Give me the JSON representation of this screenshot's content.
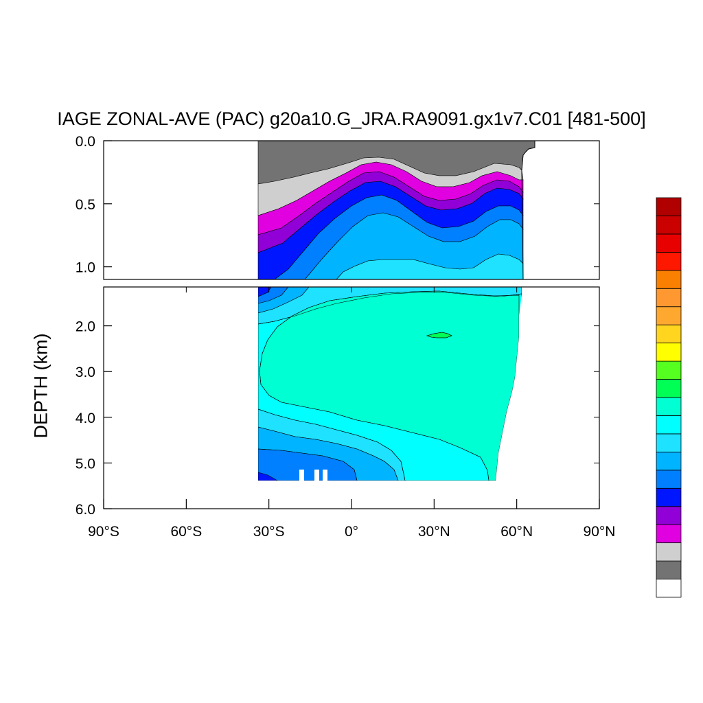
{
  "chart_data": {
    "type": "heatmap",
    "title": "IAGE ZONAL-AVE (PAC) g20a10.G_JRA.RA9091.gx1v7.C01 [481-500]",
    "ylabel": "DEPTH (km)",
    "x": {
      "range": [
        -90,
        90
      ],
      "ticks": [
        -90,
        -60,
        -30,
        0,
        30,
        60,
        90
      ],
      "tick_labels": [
        "90°S",
        "60°S",
        "30°S",
        "0°",
        "30°N",
        "60°N",
        "90°N"
      ]
    },
    "upper_panel": {
      "depth_range": [
        0.0,
        1.1
      ],
      "ticks": [
        0.0,
        0.5,
        1.0
      ],
      "tick_labels": [
        "0.0",
        "0.5",
        "1.0"
      ]
    },
    "lower_panel": {
      "depth_range": [
        1.15,
        6.0
      ],
      "ticks": [
        2.0,
        3.0,
        4.0,
        5.0,
        6.0
      ],
      "tick_labels": [
        "2.0",
        "3.0",
        "4.0",
        "5.0",
        "6.0"
      ]
    },
    "colorbar": {
      "orientation": "vertical",
      "placement": "right",
      "colors": [
        "#ffffff",
        "#737373",
        "#cfcfcf",
        "#e000e0",
        "#9100d6",
        "#0016ff",
        "#0080ff",
        "#00b4ff",
        "#1ee2ff",
        "#00ffff",
        "#00ffd2",
        "#00ff55",
        "#55ff1f",
        "#ffff00",
        "#ffd520",
        "#ffa830",
        "#ff9830",
        "#f98000",
        "#ff1800",
        "#e80000",
        "#cb0000",
        "#b00000"
      ]
    },
    "regions": {
      "land": "#ffffff",
      "level_1": "#737373",
      "level_2": "#cfcfcf",
      "level_3": "#e000e0",
      "level_4": "#9100d6",
      "level_5": "#0016ff",
      "level_6": "#0080ff",
      "level_7": "#00b4ff",
      "level_8": "#1ee2ff",
      "level_9": "#00ffff",
      "level_10": "#00ffd2",
      "level_11": "#00ff55"
    }
  }
}
